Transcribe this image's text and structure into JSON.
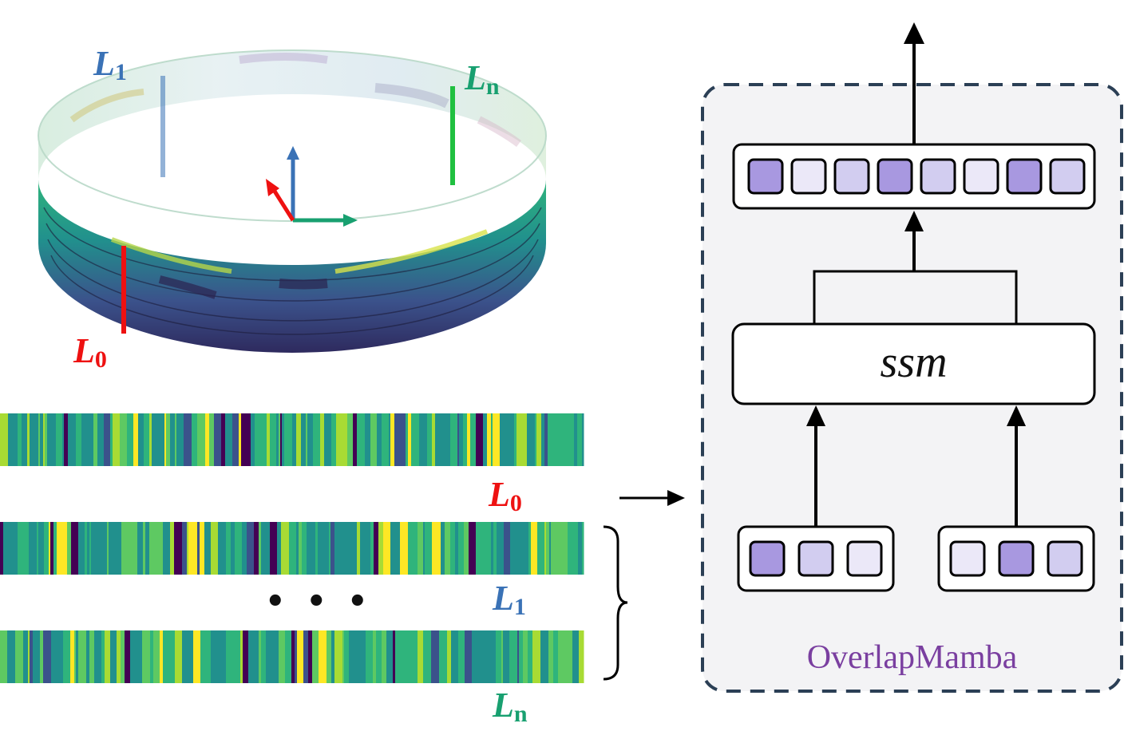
{
  "labels": {
    "ring_l1": {
      "base": "L",
      "sub": "1"
    },
    "ring_ln": {
      "base": "L",
      "sub": "n"
    },
    "ring_l0": {
      "base": "L",
      "sub": "0"
    },
    "strip_l0": {
      "base": "L",
      "sub": "0"
    },
    "strip_l1": {
      "base": "L",
      "sub": "1"
    },
    "strip_ln": {
      "base": "L",
      "sub": "n"
    }
  },
  "ellipsis": "• • •",
  "module": {
    "name": "OverlapMamba",
    "core": "ssm"
  },
  "colors": {
    "red": "#ee1111",
    "blue": "#3a72b6",
    "green": "#18a070",
    "dark_dash": "#2b3f55",
    "token_dark": "#a898e0",
    "token_mid": "#d2cdf0",
    "token_light": "#ebe8f8",
    "viridis": [
      "#440154",
      "#3b528b",
      "#21908d",
      "#2fb47c",
      "#5ec962",
      "#a8db34",
      "#fde725"
    ]
  },
  "tokens": {
    "output": [
      "dark",
      "light",
      "mid",
      "dark",
      "mid",
      "light",
      "dark",
      "mid"
    ],
    "input_left": [
      "dark",
      "mid",
      "light"
    ],
    "input_right": [
      "light",
      "dark",
      "mid"
    ]
  }
}
